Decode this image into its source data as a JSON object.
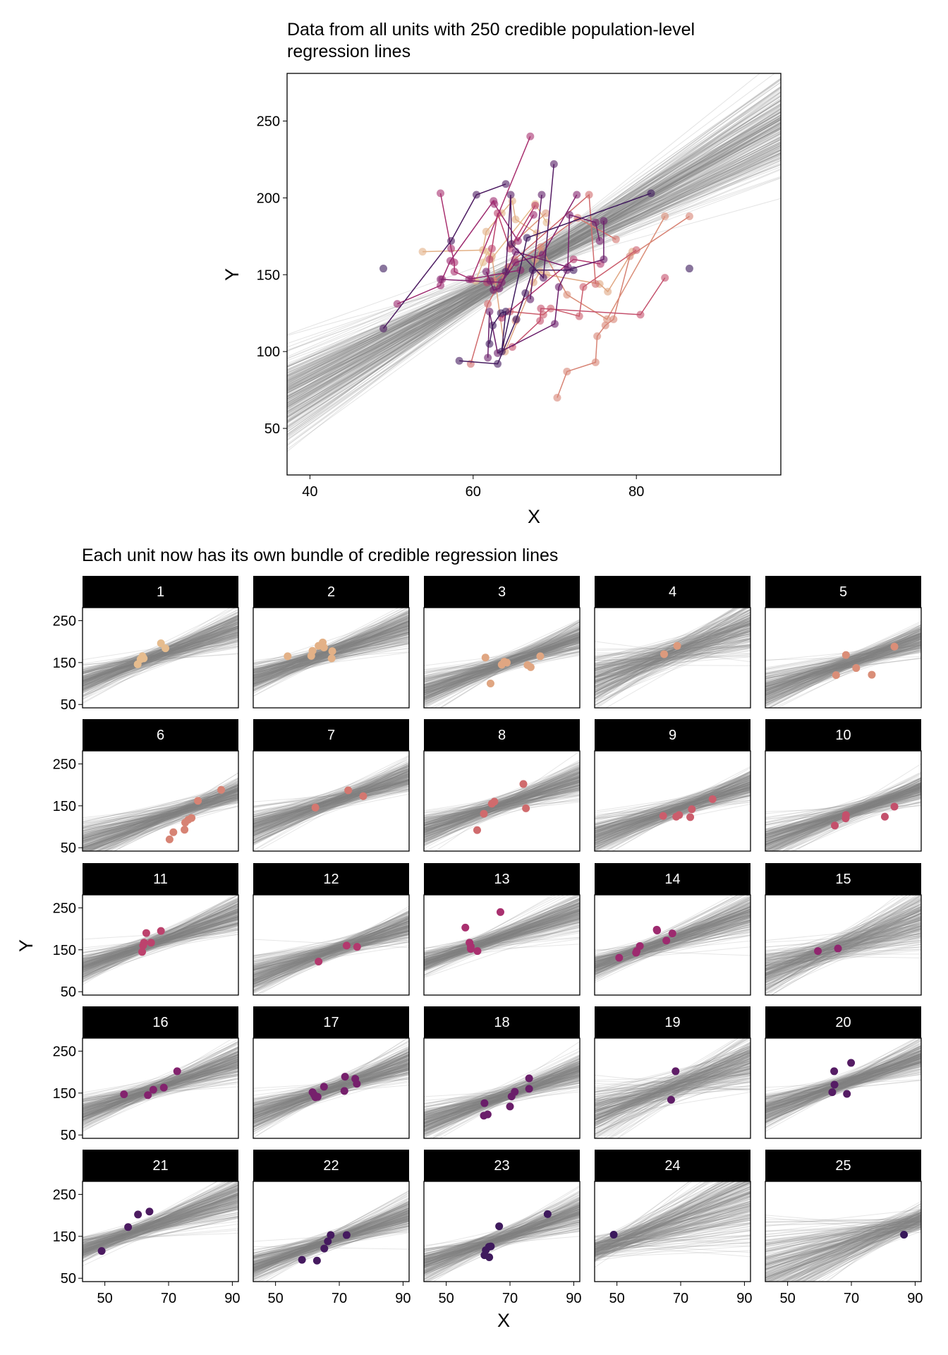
{
  "chart_data": [
    {
      "type": "scatter",
      "title_lines": [
        "Data from all units with 250 credible population-level",
        "regression lines"
      ],
      "xlabel": "X",
      "ylabel": "Y",
      "xlim": [
        37.2,
        97.7
      ],
      "ylim": [
        19.7,
        281
      ],
      "xticks": [
        "40",
        "60",
        "80"
      ],
      "yticks": [
        "50",
        "100",
        "150",
        "200",
        "250"
      ],
      "grid": false,
      "regression_lines": {
        "count": 250,
        "center_x": 67,
        "intercept_mean": 157,
        "intercept_sd": 4,
        "slope_mean": 2.95,
        "slope_sd": 0.45,
        "color": "#808080"
      },
      "point_alpha": 0.6,
      "connect_points_within_unit": true
    },
    {
      "type": "scatter",
      "title": "Each unit now has its own bundle of credible regression lines",
      "xlabel": "X",
      "ylabel": "Y",
      "xlim": [
        43,
        91.9
      ],
      "ylim": [
        42,
        281
      ],
      "xticks": [
        "50",
        "70",
        "90"
      ],
      "yticks": [
        "50",
        "150",
        "250"
      ],
      "facet_by": "unit",
      "unit_regression_lines": {
        "count": 250,
        "slope_mean": 2.6,
        "slope_sd": 0.9,
        "intercept_sd": 9,
        "color": "#808080"
      },
      "strip_color": "#000000",
      "units": [
        {
          "label": "1",
          "color": "#e6bc8e",
          "points": [
            [
              60.3,
              146
            ],
            [
              61.2,
              158
            ],
            [
              61.8,
              165
            ],
            [
              62.2,
              160
            ],
            [
              67.6,
              196
            ],
            [
              69,
              184
            ]
          ]
        },
        {
          "label": "2",
          "color": "#e3b187",
          "points": [
            [
              53.8,
              165
            ],
            [
              61.2,
              166
            ],
            [
              61.6,
              178
            ],
            [
              63.5,
              190
            ],
            [
              64.8,
              198
            ],
            [
              65.2,
              186
            ],
            [
              67.8,
              177
            ],
            [
              67.6,
              160
            ]
          ]
        },
        {
          "label": "3",
          "color": "#e0a682",
          "points": [
            [
              62.3,
              162
            ],
            [
              63.9,
              100
            ],
            [
              67.4,
              145
            ],
            [
              68.2,
              152
            ],
            [
              69,
              150
            ],
            [
              75.5,
              144
            ],
            [
              76.5,
              139
            ],
            [
              79.5,
              165
            ]
          ]
        },
        {
          "label": "4",
          "color": "#dd9a7d",
          "points": [
            [
              64.8,
              170
            ],
            [
              68.9,
              190
            ]
          ]
        },
        {
          "label": "5",
          "color": "#da8e78",
          "points": [
            [
              65.2,
              120
            ],
            [
              68.3,
              168
            ],
            [
              71.5,
              137
            ],
            [
              76.4,
              121
            ],
            [
              83.5,
              188
            ]
          ]
        },
        {
          "label": "6",
          "color": "#d78374",
          "points": [
            [
              70.3,
              70
            ],
            [
              71.5,
              87
            ],
            [
              75,
              93
            ],
            [
              75.2,
              110
            ],
            [
              76.2,
              117
            ],
            [
              77.2,
              121
            ],
            [
              79.2,
              162
            ],
            [
              86.5,
              188
            ]
          ]
        },
        {
          "label": "7",
          "color": "#d47770",
          "points": [
            [
              62.5,
              146
            ],
            [
              72.8,
              187
            ],
            [
              77.5,
              173
            ]
          ]
        },
        {
          "label": "8",
          "color": "#d06b6d",
          "points": [
            [
              59.7,
              92
            ],
            [
              61.8,
              131
            ],
            [
              64.3,
              155
            ],
            [
              65.1,
              160
            ],
            [
              74.2,
              202
            ],
            [
              75,
              144
            ]
          ]
        },
        {
          "label": "9",
          "color": "#cb5d6c",
          "points": [
            [
              64.5,
              126
            ],
            [
              68.6,
              124
            ],
            [
              69.5,
              128
            ],
            [
              73,
              123
            ],
            [
              73.5,
              142
            ],
            [
              80,
              166
            ]
          ]
        },
        {
          "label": "10",
          "color": "#c4506c",
          "points": [
            [
              64.8,
              103
            ],
            [
              68.2,
              120
            ],
            [
              68.3,
              128
            ],
            [
              80.5,
              124
            ],
            [
              83.5,
              148
            ]
          ]
        },
        {
          "label": "11",
          "color": "#bc426d",
          "points": [
            [
              61.7,
              145
            ],
            [
              62,
              160
            ],
            [
              62.3,
              167
            ],
            [
              63,
              190
            ],
            [
              64.5,
              167
            ],
            [
              67.6,
              195
            ]
          ]
        },
        {
          "label": "12",
          "color": "#b3386e",
          "points": [
            [
              63.5,
              122
            ],
            [
              72.3,
              160
            ],
            [
              75.6,
              157
            ]
          ]
        },
        {
          "label": "13",
          "color": "#a9306f",
          "points": [
            [
              56,
              203
            ],
            [
              57.3,
              167
            ],
            [
              57.7,
              158
            ],
            [
              57.7,
              152
            ],
            [
              59.8,
              147
            ],
            [
              67,
              240
            ]
          ]
        },
        {
          "label": "14",
          "color": "#9d2a6f",
          "points": [
            [
              50.7,
              131
            ],
            [
              56,
              143
            ],
            [
              56.2,
              147
            ],
            [
              57.2,
              159
            ],
            [
              62.5,
              198
            ],
            [
              62.6,
              196
            ],
            [
              65.5,
              172
            ],
            [
              67.4,
              189
            ]
          ]
        },
        {
          "label": "15",
          "color": "#90266f",
          "points": [
            [
              59.5,
              147
            ],
            [
              65.8,
              153
            ]
          ]
        },
        {
          "label": "16",
          "color": "#83236e",
          "points": [
            [
              56,
              147
            ],
            [
              63.5,
              145
            ],
            [
              65.2,
              158
            ],
            [
              68.5,
              163
            ],
            [
              72.7,
              202
            ]
          ]
        },
        {
          "label": "17",
          "color": "#76206c",
          "points": [
            [
              61.6,
              152
            ],
            [
              62.1,
              146
            ],
            [
              62.5,
              140
            ],
            [
              63.2,
              141
            ],
            [
              65.2,
              165
            ],
            [
              71.6,
              155
            ],
            [
              71.8,
              189
            ],
            [
              75,
              184
            ],
            [
              75.5,
              172
            ]
          ]
        },
        {
          "label": "18",
          "color": "#6a1e6a",
          "points": [
            [
              61.8,
              96
            ],
            [
              62,
              126
            ],
            [
              63,
              99
            ],
            [
              70,
              118
            ],
            [
              70.5,
              142
            ],
            [
              71.5,
              153
            ],
            [
              76,
              160
            ],
            [
              76,
              185
            ]
          ]
        },
        {
          "label": "19",
          "color": "#5f1d67",
          "points": [
            [
              67,
              134
            ],
            [
              68.4,
              202
            ]
          ]
        },
        {
          "label": "20",
          "color": "#551c64",
          "points": [
            [
              64,
              152
            ],
            [
              64.6,
              202
            ],
            [
              64.7,
              170
            ],
            [
              68.6,
              148
            ],
            [
              69.9,
              222
            ]
          ]
        },
        {
          "label": "21",
          "color": "#4c1b61",
          "points": [
            [
              49,
              115
            ],
            [
              57.3,
              172
            ],
            [
              60.4,
              202
            ],
            [
              64,
              209
            ]
          ]
        },
        {
          "label": "22",
          "color": "#451a5f",
          "points": [
            [
              58.3,
              94
            ],
            [
              63,
              92
            ],
            [
              65.3,
              121
            ],
            [
              66.4,
              138
            ],
            [
              67.3,
              153
            ],
            [
              72.3,
              153
            ]
          ]
        },
        {
          "label": "23",
          "color": "#3f1a5d",
          "points": [
            [
              62,
              105
            ],
            [
              62.4,
              117
            ],
            [
              63.4,
              125
            ],
            [
              64,
              126
            ],
            [
              63.5,
              100
            ],
            [
              66.6,
              174
            ],
            [
              81.8,
              203
            ]
          ]
        },
        {
          "label": "24",
          "color": "#3b195c",
          "points": [
            [
              49,
              154
            ]
          ]
        },
        {
          "label": "25",
          "color": "#38185a",
          "points": [
            [
              86.5,
              154
            ]
          ]
        }
      ]
    }
  ]
}
